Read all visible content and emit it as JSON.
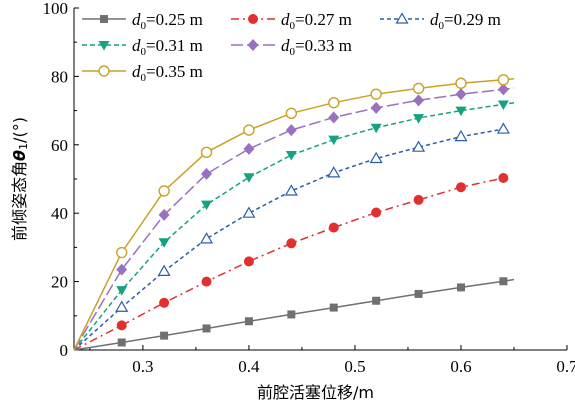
{
  "chart_data": {
    "type": "line",
    "xlabel": "前腔活塞位移/m",
    "ylabel_main": "前倾姿态角",
    "ylabel_symbol": "θ",
    "ylabel_sub": "1",
    "ylabel_unit": "/(°)",
    "xlim": [
      0.235,
      0.7
    ],
    "ylim": [
      0,
      100
    ],
    "x_ticks": [
      0.3,
      0.4,
      0.5,
      0.6,
      0.7
    ],
    "y_ticks": [
      0,
      20,
      40,
      60,
      80,
      100
    ],
    "x_tick_labels": [
      "0.3",
      "0.4",
      "0.5",
      "0.6",
      "0.7"
    ],
    "y_tick_labels": [
      "0",
      "20",
      "40",
      "60",
      "80",
      "100"
    ],
    "grid": false,
    "legend_position": "top-left",
    "legend_prefix": "d",
    "legend_sub": "0",
    "series": [
      {
        "name": "=0.25 m",
        "color": "#707070",
        "dash": "",
        "marker": "square",
        "x": [
          0.235,
          0.28,
          0.32,
          0.36,
          0.4,
          0.44,
          0.48,
          0.52,
          0.56,
          0.6,
          0.64,
          0.65
        ],
        "y": [
          0,
          2.2,
          4.2,
          6.3,
          8.4,
          10.4,
          12.4,
          14.4,
          16.4,
          18.3,
          20.1,
          20.6
        ],
        "marker_x": [
          0.28,
          0.32,
          0.36,
          0.4,
          0.44,
          0.48,
          0.52,
          0.56,
          0.6,
          0.64
        ],
        "marker_y": [
          2.2,
          4.2,
          6.3,
          8.4,
          10.4,
          12.4,
          14.4,
          16.4,
          18.3,
          20.1
        ]
      },
      {
        "name": "=0.27 m",
        "color": "#e03030",
        "dash": "8,4,2,4",
        "marker": "circle",
        "x": [
          0.235,
          0.28,
          0.32,
          0.36,
          0.4,
          0.44,
          0.48,
          0.52,
          0.56,
          0.6,
          0.64
        ],
        "y": [
          0,
          7.2,
          13.8,
          20.0,
          25.9,
          31.2,
          35.8,
          40.2,
          43.9,
          47.6,
          50.3
        ],
        "marker_x": [
          0.28,
          0.32,
          0.36,
          0.4,
          0.44,
          0.48,
          0.52,
          0.56,
          0.6,
          0.64
        ],
        "marker_y": [
          7.2,
          13.8,
          20.0,
          25.9,
          31.2,
          35.8,
          40.2,
          43.9,
          47.6,
          50.3
        ]
      },
      {
        "name": "=0.29 m",
        "color": "#2a5ea8",
        "dash": "4,3",
        "marker": "triangle-open",
        "x": [
          0.235,
          0.28,
          0.32,
          0.36,
          0.4,
          0.44,
          0.48,
          0.52,
          0.56,
          0.6,
          0.64
        ],
        "y": [
          0,
          12.5,
          23.0,
          32.5,
          40.0,
          46.5,
          51.8,
          56.0,
          59.3,
          62.4,
          64.6
        ],
        "marker_x": [
          0.28,
          0.32,
          0.36,
          0.4,
          0.44,
          0.48,
          0.52,
          0.56,
          0.6,
          0.64
        ],
        "marker_y": [
          12.5,
          23.0,
          32.5,
          40.0,
          46.5,
          51.8,
          56.0,
          59.3,
          62.4,
          64.6
        ]
      },
      {
        "name": "=0.31 m",
        "color": "#15a37f",
        "dash": "5,3",
        "marker": "triangle-down",
        "x": [
          0.235,
          0.28,
          0.32,
          0.36,
          0.4,
          0.44,
          0.48,
          0.52,
          0.56,
          0.6,
          0.64,
          0.65
        ],
        "y": [
          0,
          17.5,
          31.5,
          42.5,
          50.5,
          57.0,
          61.5,
          65.0,
          67.8,
          70.0,
          71.8,
          72.3
        ],
        "marker_x": [
          0.28,
          0.32,
          0.36,
          0.4,
          0.44,
          0.48,
          0.52,
          0.56,
          0.6,
          0.64
        ],
        "marker_y": [
          17.5,
          31.5,
          42.5,
          50.5,
          57.0,
          61.5,
          65.0,
          67.8,
          70.0,
          71.8
        ]
      },
      {
        "name": "=0.33 m",
        "color": "#9a70c0",
        "dash": "12,4",
        "marker": "diamond",
        "x": [
          0.235,
          0.28,
          0.32,
          0.36,
          0.4,
          0.44,
          0.48,
          0.52,
          0.56,
          0.6,
          0.64,
          0.65
        ],
        "y": [
          0,
          23.5,
          39.5,
          51.5,
          58.8,
          64.3,
          68.0,
          70.8,
          73.0,
          74.8,
          76.2,
          76.6
        ],
        "marker_x": [
          0.28,
          0.32,
          0.36,
          0.4,
          0.44,
          0.48,
          0.52,
          0.56,
          0.6,
          0.64
        ],
        "marker_y": [
          23.5,
          39.5,
          51.5,
          58.8,
          64.3,
          68.0,
          70.8,
          73.0,
          74.8,
          76.2
        ]
      },
      {
        "name": "=0.35 m",
        "color": "#c9a227",
        "dash": "",
        "marker": "circle-open",
        "x": [
          0.235,
          0.28,
          0.32,
          0.36,
          0.4,
          0.44,
          0.48,
          0.52,
          0.56,
          0.6,
          0.64,
          0.65
        ],
        "y": [
          0,
          28.5,
          46.5,
          57.8,
          64.3,
          69.2,
          72.3,
          74.8,
          76.5,
          78.0,
          79.0,
          79.3
        ],
        "marker_x": [
          0.28,
          0.32,
          0.36,
          0.4,
          0.44,
          0.48,
          0.52,
          0.56,
          0.6,
          0.64
        ],
        "marker_y": [
          28.5,
          46.5,
          57.8,
          64.3,
          69.2,
          72.3,
          74.8,
          76.5,
          78.0,
          79.0
        ]
      }
    ]
  }
}
